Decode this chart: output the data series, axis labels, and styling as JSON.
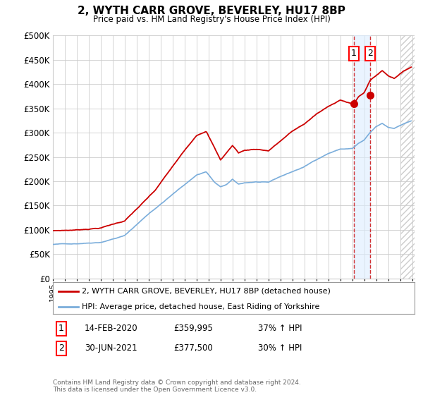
{
  "title": "2, WYTH CARR GROVE, BEVERLEY, HU17 8BP",
  "subtitle": "Price paid vs. HM Land Registry's House Price Index (HPI)",
  "ylim": [
    0,
    500000
  ],
  "yticks": [
    0,
    50000,
    100000,
    150000,
    200000,
    250000,
    300000,
    350000,
    400000,
    450000,
    500000
  ],
  "ytick_labels": [
    "£0",
    "£50K",
    "£100K",
    "£150K",
    "£200K",
    "£250K",
    "£300K",
    "£350K",
    "£400K",
    "£450K",
    "£500K"
  ],
  "x_start_year": 1995,
  "x_end_year": 2025,
  "hpi_color": "#7aaddb",
  "price_color": "#cc0000",
  "marker_color": "#cc0000",
  "transaction1_date": 2020.12,
  "transaction1_price": 359995,
  "transaction1_label": "1",
  "transaction1_date_str": "14-FEB-2020",
  "transaction1_price_str": "£359,995",
  "transaction1_hpi_str": "37% ↑ HPI",
  "transaction2_date": 2021.5,
  "transaction2_price": 377500,
  "transaction2_label": "2",
  "transaction2_date_str": "30-JUN-2021",
  "transaction2_price_str": "£377,500",
  "transaction2_hpi_str": "30% ↑ HPI",
  "legend_label1": "2, WYTH CARR GROVE, BEVERLEY, HU17 8BP (detached house)",
  "legend_label2": "HPI: Average price, detached house, East Riding of Yorkshire",
  "footnote": "Contains HM Land Registry data © Crown copyright and database right 2024.\nThis data is licensed under the Open Government Licence v3.0.",
  "background_color": "#ffffff",
  "grid_color": "#cccccc",
  "shaded_region_color": "#ddeeff"
}
